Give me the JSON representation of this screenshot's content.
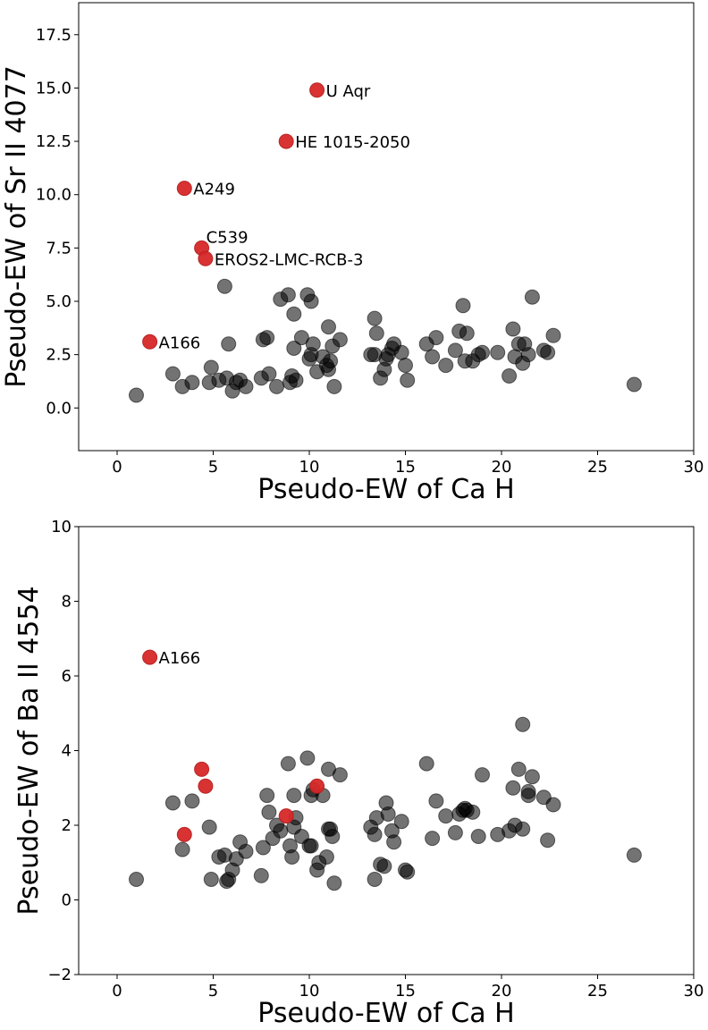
{
  "chart_data": [
    {
      "type": "scatter",
      "xlabel": "Pseudo-EW of Ca H",
      "ylabel": "Pseudo-EW of Sr II 4077",
      "xlim": [
        -2,
        30
      ],
      "ylim": [
        -2,
        19
      ],
      "x_ticks": [
        0,
        5,
        10,
        15,
        20,
        25,
        30
      ],
      "y_ticks": [
        0.0,
        2.5,
        5.0,
        7.5,
        10.0,
        12.5,
        15.0,
        17.5
      ],
      "x_tick_labels": [
        "0",
        "5",
        "10",
        "15",
        "20",
        "25",
        "30"
      ],
      "y_tick_labels": [
        "0.0",
        "2.5",
        "5.0",
        "7.5",
        "10.0",
        "12.5",
        "15.0",
        "17.5"
      ],
      "grid": false,
      "series": [
        {
          "color": "#555555",
          "points": [
            [
              1.0,
              0.6
            ],
            [
              2.9,
              1.6
            ],
            [
              3.4,
              1.0
            ],
            [
              3.9,
              1.2
            ],
            [
              4.8,
              1.2
            ],
            [
              4.9,
              1.9
            ],
            [
              5.3,
              1.3
            ],
            [
              5.6,
              5.7
            ],
            [
              5.7,
              1.4
            ],
            [
              5.8,
              3.0
            ],
            [
              6.0,
              0.8
            ],
            [
              6.2,
              1.2
            ],
            [
              6.4,
              1.3
            ],
            [
              6.7,
              1.0
            ],
            [
              7.5,
              1.4
            ],
            [
              7.6,
              3.2
            ],
            [
              7.8,
              3.3
            ],
            [
              7.9,
              1.6
            ],
            [
              8.3,
              1.0
            ],
            [
              8.5,
              5.1
            ],
            [
              8.9,
              5.3
            ],
            [
              9.0,
              1.2
            ],
            [
              9.1,
              1.5
            ],
            [
              9.2,
              2.8
            ],
            [
              9.2,
              4.4
            ],
            [
              9.3,
              1.3
            ],
            [
              9.6,
              3.3
            ],
            [
              9.9,
              5.3
            ],
            [
              10.0,
              2.3
            ],
            [
              10.1,
              2.5
            ],
            [
              10.1,
              5.0
            ],
            [
              10.2,
              3.0
            ],
            [
              10.4,
              1.7
            ],
            [
              10.7,
              2.4
            ],
            [
              10.9,
              2.0
            ],
            [
              11.0,
              1.8
            ],
            [
              11.0,
              3.8
            ],
            [
              11.1,
              2.2
            ],
            [
              11.2,
              2.9
            ],
            [
              11.3,
              1.0
            ],
            [
              11.6,
              3.2
            ],
            [
              13.2,
              2.5
            ],
            [
              13.4,
              2.5
            ],
            [
              13.4,
              4.2
            ],
            [
              13.5,
              3.5
            ],
            [
              13.7,
              1.4
            ],
            [
              13.9,
              1.8
            ],
            [
              14.0,
              2.3
            ],
            [
              14.1,
              2.5
            ],
            [
              14.3,
              2.8
            ],
            [
              14.4,
              3.0
            ],
            [
              14.8,
              2.6
            ],
            [
              15.0,
              2.0
            ],
            [
              15.1,
              1.3
            ],
            [
              16.1,
              3.0
            ],
            [
              16.4,
              2.4
            ],
            [
              16.6,
              3.3
            ],
            [
              17.1,
              2.0
            ],
            [
              17.6,
              2.7
            ],
            [
              17.8,
              3.6
            ],
            [
              18.0,
              4.8
            ],
            [
              18.1,
              2.2
            ],
            [
              18.2,
              3.5
            ],
            [
              18.5,
              2.2
            ],
            [
              18.8,
              2.5
            ],
            [
              19.0,
              2.6
            ],
            [
              19.8,
              2.6
            ],
            [
              20.4,
              1.5
            ],
            [
              20.6,
              3.7
            ],
            [
              20.7,
              2.4
            ],
            [
              20.9,
              3.0
            ],
            [
              21.1,
              2.1
            ],
            [
              21.2,
              3.0
            ],
            [
              21.4,
              2.5
            ],
            [
              21.6,
              5.2
            ],
            [
              22.2,
              2.7
            ],
            [
              22.4,
              2.6
            ],
            [
              22.7,
              3.4
            ],
            [
              26.9,
              1.1
            ]
          ]
        },
        {
          "color": "#d62728",
          "points": [
            [
              1.7,
              3.1
            ],
            [
              3.5,
              10.3
            ],
            [
              4.4,
              7.5
            ],
            [
              4.6,
              7.0
            ],
            [
              8.8,
              12.5
            ],
            [
              10.4,
              14.9
            ]
          ]
        }
      ],
      "annotations": [
        {
          "text": "U Aqr",
          "x": 10.4,
          "y": 14.9
        },
        {
          "text": "HE 1015-2050",
          "x": 8.8,
          "y": 12.5
        },
        {
          "text": "A249",
          "x": 3.5,
          "y": 10.3
        },
        {
          "text": "C539",
          "x": 4.4,
          "y": 7.5
        },
        {
          "text": "EROS2-LMC-RCB-3",
          "x": 4.6,
          "y": 7.0
        },
        {
          "text": "A166",
          "x": 1.7,
          "y": 3.1
        }
      ]
    },
    {
      "type": "scatter",
      "xlabel": "Pseudo-EW of Ca H",
      "ylabel": "Pseudo-EW of Ba II 4554",
      "xlim": [
        -2,
        30
      ],
      "ylim": [
        -2,
        10
      ],
      "x_ticks": [
        0,
        5,
        10,
        15,
        20,
        25,
        30
      ],
      "y_ticks": [
        -2,
        0,
        2,
        4,
        6,
        8,
        10
      ],
      "x_tick_labels": [
        "0",
        "5",
        "10",
        "15",
        "20",
        "25",
        "30"
      ],
      "y_tick_labels": [
        "−2",
        "0",
        "2",
        "4",
        "6",
        "8",
        "10"
      ],
      "grid": false,
      "series": [
        {
          "color": "#555555",
          "points": [
            [
              1.0,
              0.55
            ],
            [
              2.9,
              2.6
            ],
            [
              3.4,
              1.35
            ],
            [
              3.9,
              2.65
            ],
            [
              4.8,
              1.95
            ],
            [
              4.9,
              0.55
            ],
            [
              5.3,
              1.15
            ],
            [
              5.6,
              1.2
            ],
            [
              5.7,
              0.5
            ],
            [
              5.8,
              0.55
            ],
            [
              6.0,
              0.8
            ],
            [
              6.2,
              1.1
            ],
            [
              6.4,
              1.55
            ],
            [
              6.7,
              1.3
            ],
            [
              7.5,
              0.65
            ],
            [
              7.6,
              1.4
            ],
            [
              7.8,
              2.8
            ],
            [
              7.9,
              2.35
            ],
            [
              8.1,
              1.65
            ],
            [
              8.3,
              2.0
            ],
            [
              8.5,
              1.85
            ],
            [
              8.9,
              3.65
            ],
            [
              9.0,
              1.45
            ],
            [
              9.1,
              1.15
            ],
            [
              9.2,
              2.8
            ],
            [
              9.2,
              1.95
            ],
            [
              9.3,
              2.2
            ],
            [
              9.6,
              1.7
            ],
            [
              9.9,
              3.8
            ],
            [
              10.0,
              1.45
            ],
            [
              10.1,
              1.45
            ],
            [
              10.1,
              2.8
            ],
            [
              10.2,
              2.95
            ],
            [
              10.4,
              0.8
            ],
            [
              10.5,
              1.0
            ],
            [
              10.7,
              2.8
            ],
            [
              10.9,
              1.15
            ],
            [
              11.0,
              3.5
            ],
            [
              11.0,
              1.9
            ],
            [
              11.1,
              1.9
            ],
            [
              11.2,
              1.7
            ],
            [
              11.3,
              0.45
            ],
            [
              11.6,
              3.35
            ],
            [
              13.2,
              1.95
            ],
            [
              13.4,
              0.55
            ],
            [
              13.4,
              1.75
            ],
            [
              13.5,
              2.2
            ],
            [
              13.7,
              0.95
            ],
            [
              13.9,
              0.9
            ],
            [
              14.0,
              2.6
            ],
            [
              14.1,
              2.3
            ],
            [
              14.3,
              1.85
            ],
            [
              14.4,
              1.55
            ],
            [
              14.8,
              2.1
            ],
            [
              15.0,
              0.8
            ],
            [
              15.1,
              0.75
            ],
            [
              16.1,
              3.65
            ],
            [
              16.4,
              1.65
            ],
            [
              16.6,
              2.65
            ],
            [
              17.1,
              2.25
            ],
            [
              17.6,
              1.8
            ],
            [
              17.8,
              2.3
            ],
            [
              18.0,
              2.4
            ],
            [
              18.1,
              2.45
            ],
            [
              18.2,
              2.4
            ],
            [
              18.5,
              2.35
            ],
            [
              18.8,
              1.7
            ],
            [
              19.0,
              3.35
            ],
            [
              19.8,
              1.75
            ],
            [
              20.4,
              1.85
            ],
            [
              20.6,
              3.0
            ],
            [
              20.7,
              2.0
            ],
            [
              20.9,
              3.5
            ],
            [
              21.1,
              1.9
            ],
            [
              21.1,
              4.7
            ],
            [
              21.4,
              2.8
            ],
            [
              21.4,
              2.9
            ],
            [
              21.6,
              3.3
            ],
            [
              22.2,
              2.75
            ],
            [
              22.4,
              1.6
            ],
            [
              22.7,
              2.55
            ],
            [
              26.9,
              1.2
            ]
          ]
        },
        {
          "color": "#d62728",
          "points": [
            [
              1.7,
              6.5
            ],
            [
              3.5,
              1.75
            ],
            [
              4.4,
              3.5
            ],
            [
              4.6,
              3.05
            ],
            [
              8.8,
              2.25
            ],
            [
              10.4,
              3.05
            ]
          ]
        }
      ],
      "annotations": [
        {
          "text": "A166",
          "x": 1.7,
          "y": 6.5
        }
      ]
    }
  ]
}
